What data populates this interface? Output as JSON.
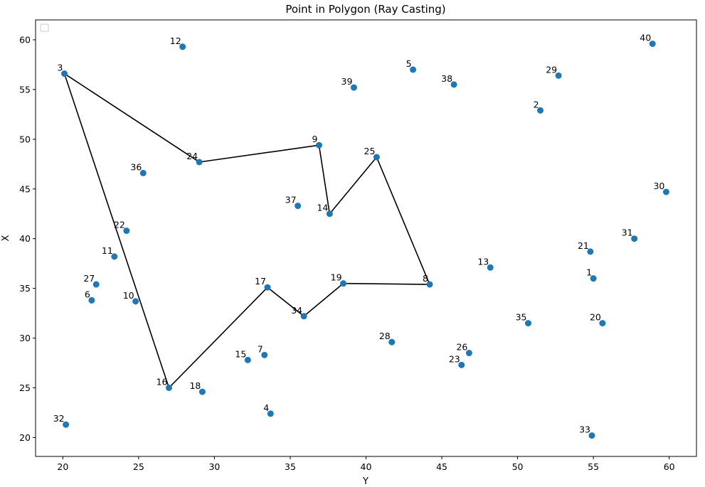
{
  "chart_data": {
    "type": "scatter",
    "title": "Point in Polygon (Ray Casting)",
    "xlabel": "Y",
    "ylabel": "X",
    "xlim": [
      18.2,
      61.8
    ],
    "ylim": [
      18.1,
      62.0
    ],
    "xticks": [
      20,
      25,
      30,
      35,
      40,
      45,
      50,
      55,
      60
    ],
    "yticks": [
      20,
      25,
      30,
      35,
      40,
      45,
      50,
      55,
      60
    ],
    "legend": {
      "placement": "top-left",
      "entries": []
    },
    "grid": false,
    "colors": {
      "points": "#1f77b4",
      "polygon": "#000000"
    },
    "points": [
      {
        "label": "1",
        "x": 55.0,
        "y": 36.0
      },
      {
        "label": "2",
        "x": 51.5,
        "y": 52.9
      },
      {
        "label": "3",
        "x": 20.1,
        "y": 56.6
      },
      {
        "label": "4",
        "x": 33.7,
        "y": 22.4
      },
      {
        "label": "5",
        "x": 43.1,
        "y": 57.0
      },
      {
        "label": "6",
        "x": 21.9,
        "y": 33.8
      },
      {
        "label": "7",
        "x": 33.3,
        "y": 28.3
      },
      {
        "label": "8",
        "x": 44.2,
        "y": 35.4
      },
      {
        "label": "9",
        "x": 36.9,
        "y": 49.4
      },
      {
        "label": "10",
        "x": 24.8,
        "y": 33.7
      },
      {
        "label": "11",
        "x": 23.4,
        "y": 38.2
      },
      {
        "label": "12",
        "x": 27.9,
        "y": 59.3
      },
      {
        "label": "13",
        "x": 48.2,
        "y": 37.1
      },
      {
        "label": "14",
        "x": 37.6,
        "y": 42.5
      },
      {
        "label": "15",
        "x": 32.2,
        "y": 27.8
      },
      {
        "label": "16",
        "x": 27.0,
        "y": 25.0
      },
      {
        "label": "17",
        "x": 33.5,
        "y": 35.1
      },
      {
        "label": "18",
        "x": 29.2,
        "y": 24.6
      },
      {
        "label": "19",
        "x": 38.5,
        "y": 35.5
      },
      {
        "label": "20",
        "x": 55.6,
        "y": 31.5
      },
      {
        "label": "21",
        "x": 54.8,
        "y": 38.7
      },
      {
        "label": "22",
        "x": 24.2,
        "y": 40.8
      },
      {
        "label": "23",
        "x": 46.3,
        "y": 27.3
      },
      {
        "label": "24",
        "x": 29.0,
        "y": 47.7
      },
      {
        "label": "25",
        "x": 40.7,
        "y": 48.2
      },
      {
        "label": "26",
        "x": 46.8,
        "y": 28.5
      },
      {
        "label": "27",
        "x": 22.2,
        "y": 35.4
      },
      {
        "label": "28",
        "x": 41.7,
        "y": 29.6
      },
      {
        "label": "29",
        "x": 52.7,
        "y": 56.4
      },
      {
        "label": "30",
        "x": 59.8,
        "y": 44.7
      },
      {
        "label": "31",
        "x": 57.7,
        "y": 40.0
      },
      {
        "label": "32",
        "x": 20.2,
        "y": 21.3
      },
      {
        "label": "33",
        "x": 54.9,
        "y": 20.2
      },
      {
        "label": "34",
        "x": 35.9,
        "y": 32.2
      },
      {
        "label": "35",
        "x": 50.7,
        "y": 31.5
      },
      {
        "label": "36",
        "x": 25.3,
        "y": 46.6
      },
      {
        "label": "37",
        "x": 35.5,
        "y": 43.3
      },
      {
        "label": "38",
        "x": 45.8,
        "y": 55.5
      },
      {
        "label": "39",
        "x": 39.2,
        "y": 55.2
      },
      {
        "label": "40",
        "x": 58.9,
        "y": 59.6
      }
    ],
    "polygon": [
      "3",
      "24",
      "9",
      "14",
      "25",
      "8",
      "19",
      "34",
      "17",
      "16",
      "3"
    ]
  }
}
